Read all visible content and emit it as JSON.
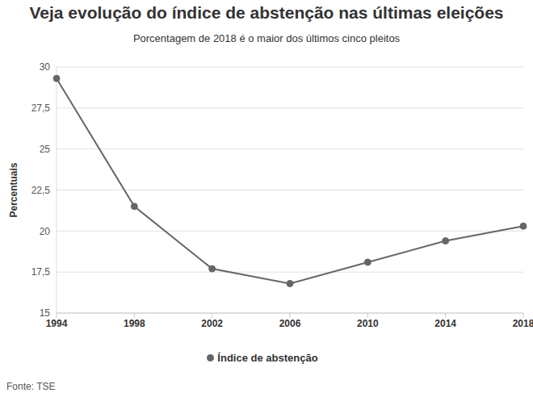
{
  "chart_data": {
    "type": "line",
    "title": "Veja evolução do índice de abstenção nas últimas eleições",
    "subtitle": "Porcentagem de 2018 é o maior dos últimos cinco pleitos",
    "y_label": "Percentuais",
    "source": "Fonte: TSE",
    "categories": [
      "1994",
      "1998",
      "2002",
      "2006",
      "2010",
      "2014",
      "2018"
    ],
    "series": [
      {
        "name": "Índice de abstenção",
        "color": "#666666",
        "marker": "circle",
        "values": [
          29.3,
          21.5,
          17.7,
          16.8,
          18.1,
          19.4,
          20.3
        ]
      }
    ],
    "ylim": [
      15,
      30
    ],
    "yticks": [
      15,
      {
        "value": 17.5,
        "label": "17,5"
      },
      20,
      {
        "value": 22.5,
        "label": "22,5"
      },
      25,
      {
        "value": 27.5,
        "label": "27,5"
      },
      30
    ],
    "grid": true,
    "legend": "bottom"
  }
}
